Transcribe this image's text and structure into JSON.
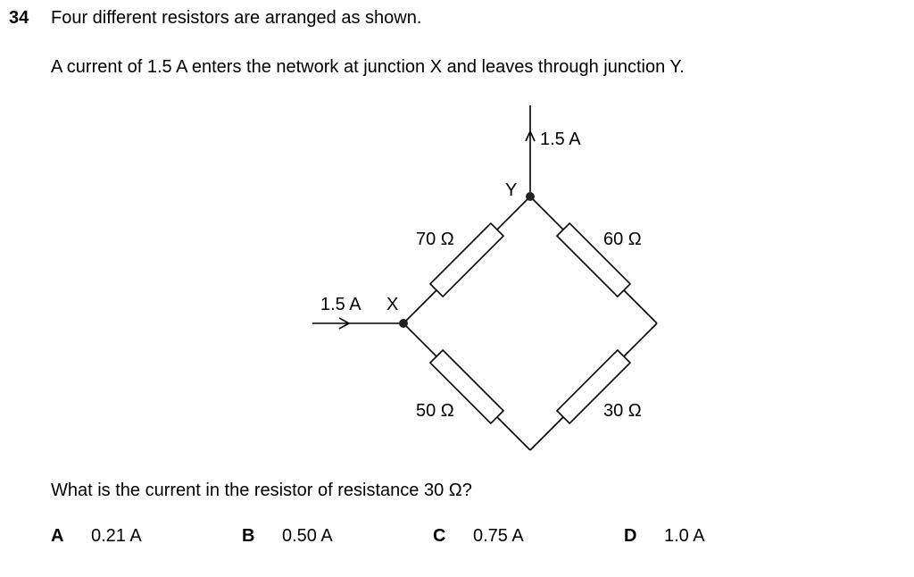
{
  "question_number": "34",
  "stem_line1": "Four different resistors are arranged as shown.",
  "stem_line2": "A current of 1.5 A enters the network at junction X and leaves through junction Y.",
  "diagram": {
    "current_in_label": "1.5 A",
    "current_out_label": "1.5 A",
    "junction_x_label": "X",
    "junction_y_label": "Y",
    "resistors": {
      "top_left": "70 Ω",
      "top_right": "60 Ω",
      "bottom_left": "50 Ω",
      "bottom_right": "30 Ω"
    }
  },
  "question_text": "What is the current in the resistor of resistance 30 Ω?",
  "options": [
    {
      "letter": "A",
      "value": "0.21 A"
    },
    {
      "letter": "B",
      "value": "0.50 A"
    },
    {
      "letter": "C",
      "value": "0.75 A"
    },
    {
      "letter": "D",
      "value": "1.0 A"
    }
  ]
}
